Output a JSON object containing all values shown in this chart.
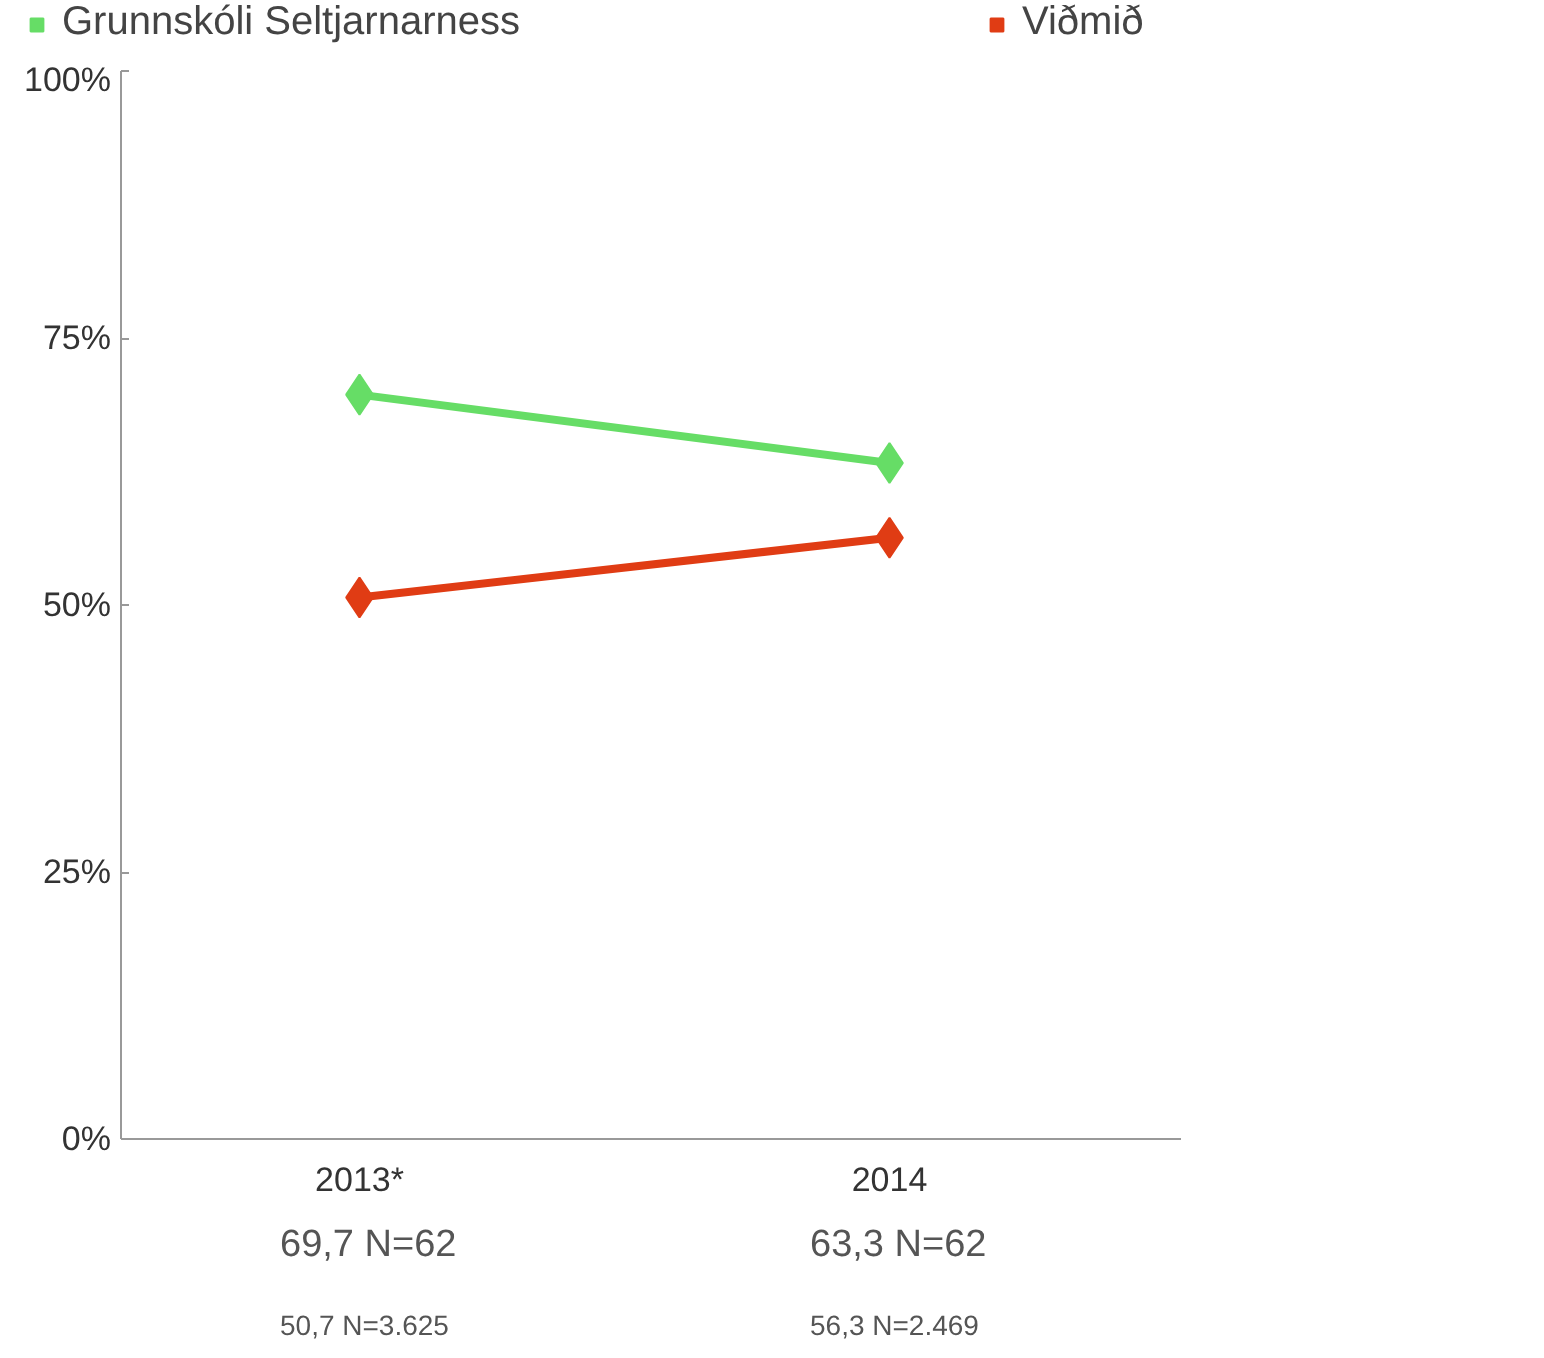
{
  "chart_data": {
    "type": "line",
    "categories": [
      "2013*",
      "2014"
    ],
    "series": [
      {
        "name": "Grunnskóli Seltjarnarness",
        "color": "#66dd66",
        "values": [
          69.7,
          63.3
        ],
        "value_labels": [
          "69,7 N=62",
          "63,3 N=62"
        ]
      },
      {
        "name": "Viðmið",
        "color": "#e03c14",
        "values": [
          50.7,
          56.3
        ],
        "value_labels": [
          "50,7 N=3.625",
          "56,3 N=2.469"
        ]
      }
    ],
    "ylim": [
      0,
      100
    ],
    "yticks": [
      {
        "value": 0,
        "label": "0%"
      },
      {
        "value": 25,
        "label": "25%"
      },
      {
        "value": 50,
        "label": "50%"
      },
      {
        "value": 75,
        "label": "75%"
      },
      {
        "value": 100,
        "label": "100%"
      }
    ],
    "grid": false,
    "legend": "top",
    "marker": "diamond",
    "line_style": "solid"
  }
}
